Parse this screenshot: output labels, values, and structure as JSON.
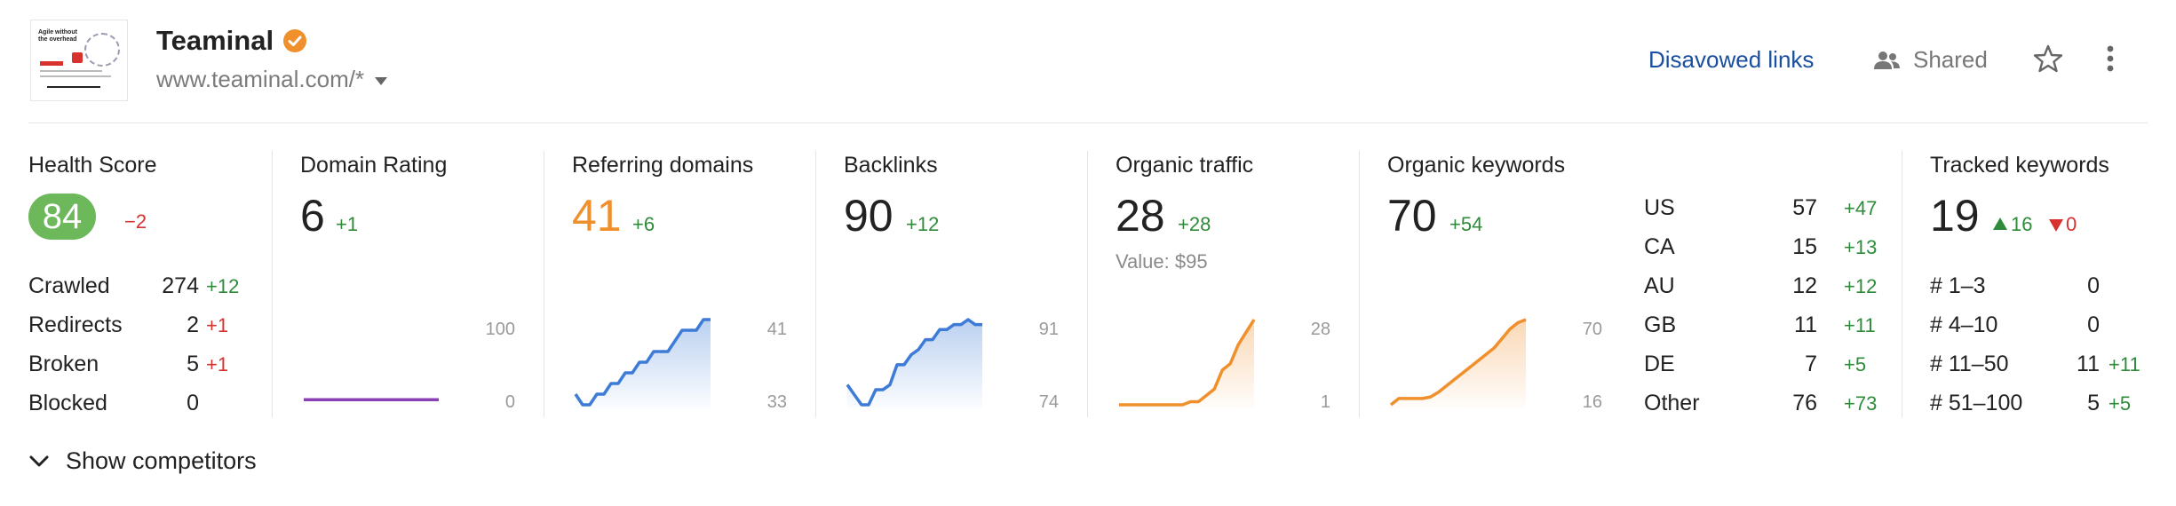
{
  "site": {
    "name": "Teaminal",
    "url": "www.teaminal.com/*",
    "thumbnail_headline": "Agile without the overhead"
  },
  "header": {
    "disavowed_label": "Disavowed links",
    "shared_label": "Shared"
  },
  "health": {
    "label": "Health Score",
    "value": "84",
    "delta": "−2",
    "rows": [
      {
        "label": "Crawled",
        "value": "274",
        "delta": "+12",
        "dir": "pos"
      },
      {
        "label": "Redirects",
        "value": "2",
        "delta": "+1",
        "dir": "neg"
      },
      {
        "label": "Broken",
        "value": "5",
        "delta": "+1",
        "dir": "neg"
      },
      {
        "label": "Blocked",
        "value": "0",
        "delta": "",
        "dir": "pos"
      }
    ]
  },
  "domain_rating": {
    "label": "Domain Rating",
    "value": "6",
    "delta": "+1",
    "axis_top": "100",
    "axis_bottom": "0"
  },
  "referring_domains": {
    "label": "Referring domains",
    "value": "41",
    "delta": "+6",
    "axis_top": "41",
    "axis_bottom": "33"
  },
  "backlinks": {
    "label": "Backlinks",
    "value": "90",
    "delta": "+12",
    "axis_top": "91",
    "axis_bottom": "74"
  },
  "organic_traffic": {
    "label": "Organic traffic",
    "value": "28",
    "delta": "+28",
    "sub": "Value: $95",
    "axis_top": "28",
    "axis_bottom": "1"
  },
  "organic_keywords": {
    "label": "Organic keywords",
    "value": "70",
    "delta": "+54",
    "axis_top": "70",
    "axis_bottom": "16",
    "countries": [
      {
        "code": "US",
        "value": "57",
        "delta": "+47"
      },
      {
        "code": "CA",
        "value": "15",
        "delta": "+13"
      },
      {
        "code": "AU",
        "value": "12",
        "delta": "+12"
      },
      {
        "code": "GB",
        "value": "11",
        "delta": "+11"
      },
      {
        "code": "DE",
        "value": "7",
        "delta": "+5"
      },
      {
        "code": "Other",
        "value": "76",
        "delta": "+73"
      }
    ]
  },
  "tracked_keywords": {
    "label": "Tracked keywords",
    "value": "19",
    "up": "16",
    "down": "0",
    "rows": [
      {
        "label": "# 1–3",
        "value": "0",
        "delta": ""
      },
      {
        "label": "# 4–10",
        "value": "0",
        "delta": ""
      },
      {
        "label": "# 11–50",
        "value": "11",
        "delta": "+11"
      },
      {
        "label": "# 51–100",
        "value": "5",
        "delta": "+5"
      }
    ]
  },
  "footer": {
    "show_competitors": "Show competitors"
  },
  "colors": {
    "positive": "#2e8b3a",
    "negative": "#d8322f",
    "link": "#1a4fa0",
    "health_badge": "#6cb85a",
    "orange": "#f0902c",
    "blue_line": "#3d7bd6",
    "purple_line": "#8a3fb5"
  },
  "chart_data": [
    {
      "type": "line",
      "name": "Domain Rating",
      "ylim": [
        0,
        100
      ],
      "values": [
        6,
        6,
        6,
        6,
        6,
        6,
        6,
        6,
        6,
        6,
        6,
        6,
        6,
        6,
        6,
        6,
        6,
        6,
        6,
        6
      ]
    },
    {
      "type": "area",
      "name": "Referring domains",
      "ylim": [
        33,
        41
      ],
      "values": [
        34,
        33,
        33,
        34,
        34,
        35,
        35,
        36,
        36,
        37,
        37,
        38,
        38,
        38,
        39,
        40,
        40,
        40,
        41,
        41
      ]
    },
    {
      "type": "area",
      "name": "Backlinks",
      "ylim": [
        74,
        91
      ],
      "values": [
        78,
        76,
        74,
        74,
        77,
        77,
        78,
        82,
        82,
        84,
        85,
        87,
        87,
        89,
        89,
        90,
        90,
        91,
        90,
        90
      ]
    },
    {
      "type": "area",
      "name": "Organic traffic",
      "ylim": [
        1,
        28
      ],
      "values": [
        1,
        1,
        1,
        1,
        1,
        1,
        1,
        1,
        1,
        2,
        2,
        4,
        6,
        12,
        14,
        20,
        24,
        28
      ]
    },
    {
      "type": "area",
      "name": "Organic keywords",
      "ylim": [
        16,
        70
      ],
      "values": [
        16,
        20,
        20,
        20,
        20,
        21,
        24,
        28,
        32,
        36,
        40,
        44,
        48,
        52,
        58,
        64,
        68,
        70
      ]
    }
  ]
}
